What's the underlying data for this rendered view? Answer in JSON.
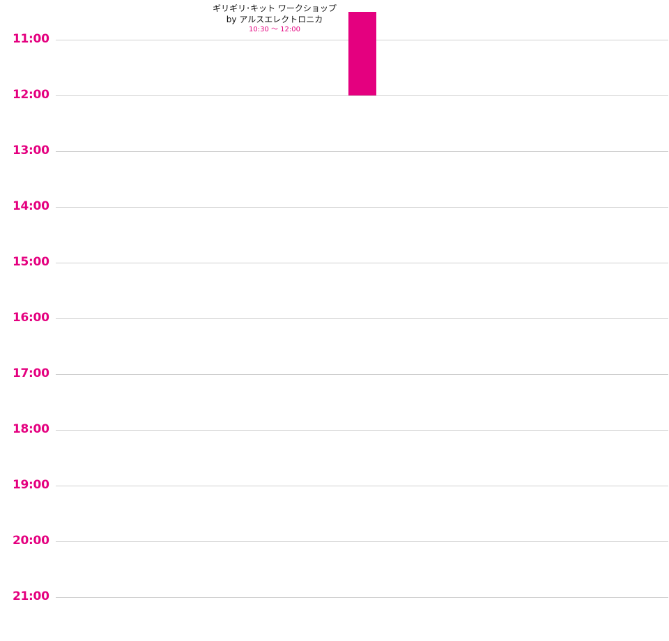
{
  "colors": {
    "accent": "#e4007f",
    "gridline": "#cfcfcf",
    "text": "#111111"
  },
  "timeline": {
    "hours": [
      "11:00",
      "12:00",
      "13:00",
      "14:00",
      "15:00",
      "16:00",
      "17:00",
      "18:00",
      "19:00",
      "20:00",
      "21:00"
    ],
    "events": [
      {
        "title_line1": "ギリギリ･キット ワークショップ",
        "title_line2": "by アルスエレクトロニカ",
        "time": "10:30 〜 12:00",
        "start_hour": 10.5,
        "end_hour": 12
      }
    ]
  }
}
